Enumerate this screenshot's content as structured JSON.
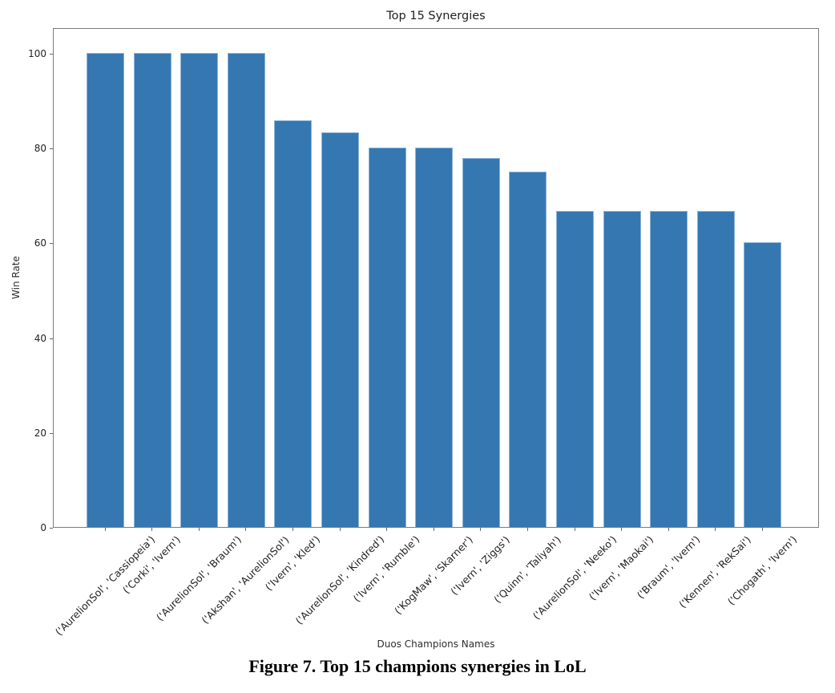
{
  "caption": "Figure 7. Top 15 champions synergies in LoL",
  "chart_data": {
    "type": "bar",
    "title": "Top 15 Synergies",
    "xlabel": "Duos Champions Names",
    "ylabel": "Win Rate",
    "categories": [
      "('AurelionSol', 'Cassiopeia')",
      "('Corki', 'Ivern')",
      "('AurelionSol', 'Braum')",
      "('Akshan', 'AurelionSol')",
      "('Ivern', 'Kled')",
      "('AurelionSol', 'Kindred')",
      "('Ivern', 'Rumble')",
      "('KogMaw', 'Skarner')",
      "('Ivern', 'Ziggs')",
      "('Quinn', 'Taliyah')",
      "('AurelionSol', 'Neeko')",
      "('Ivern', 'Maokai')",
      "('Braum', 'Ivern')",
      "('Kennen', 'RekSai')",
      "('Chogath', 'Ivern')"
    ],
    "values": [
      100,
      100,
      100,
      100,
      85.71,
      83.33,
      80,
      80,
      77.78,
      75,
      66.67,
      66.67,
      66.67,
      66.67,
      60
    ],
    "yticks": [
      0,
      20,
      40,
      60,
      80,
      100
    ],
    "ylim": [
      0,
      105.4
    ],
    "grid": false,
    "legend": "none",
    "bar_color": "#3577b1",
    "bar_edge_color": "#8db4d8",
    "spine_color": "#7c7c7c",
    "tick_label_color": "#222222"
  }
}
